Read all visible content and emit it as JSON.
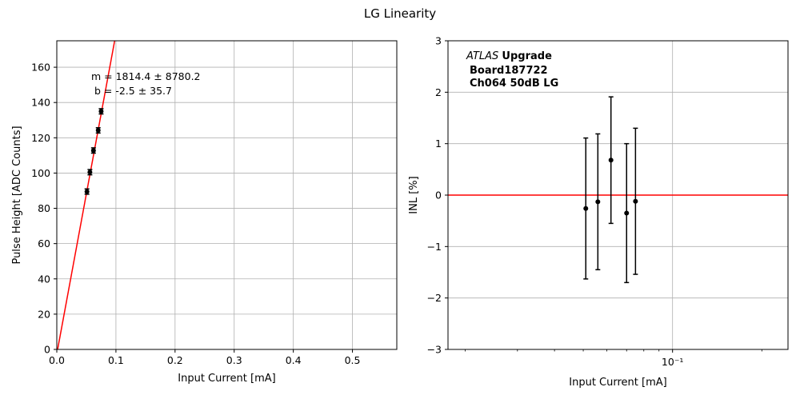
{
  "figure": {
    "title": "LG Linearity"
  },
  "chart_data": [
    {
      "type": "scatter",
      "xlabel": "Input Current [mA]",
      "ylabel": "Pulse Height [ADC Counts]",
      "xlim": [
        0,
        0.575
      ],
      "ylim": [
        0,
        175
      ],
      "xticks": [
        "0.0",
        "0.1",
        "0.2",
        "0.3",
        "0.4",
        "0.5"
      ],
      "yticks": [
        "0",
        "20",
        "40",
        "60",
        "80",
        "100",
        "120",
        "140",
        "160"
      ],
      "grid": true,
      "points": [
        {
          "x": 0.051,
          "y": 89.5,
          "yerr": 1.5
        },
        {
          "x": 0.056,
          "y": 100.5,
          "yerr": 1.5
        },
        {
          "x": 0.062,
          "y": 112.8,
          "yerr": 1.5
        },
        {
          "x": 0.07,
          "y": 124.2,
          "yerr": 1.5
        },
        {
          "x": 0.075,
          "y": 135.0,
          "yerr": 1.5
        }
      ],
      "fit": {
        "m": 1814.4,
        "b": -2.5,
        "color": "#ff0000"
      },
      "annotation": [
        "m = 1814.4 ± 8780.2",
        " b = -2.5 ± 35.7"
      ]
    },
    {
      "type": "scatter",
      "xscale": "log",
      "xlabel": "Input Current [mA]",
      "ylabel": "INL [%]",
      "xlim": [
        0.0175,
        0.245
      ],
      "ylim": [
        -3,
        3
      ],
      "xticks": [
        "10⁻¹"
      ],
      "yticks": [
        "−3",
        "−2",
        "−1",
        "0",
        "1",
        "2",
        "3"
      ],
      "grid": true,
      "points": [
        {
          "x": 0.051,
          "y": -0.26,
          "yerr": 1.37
        },
        {
          "x": 0.056,
          "y": -0.13,
          "yerr": 1.32
        },
        {
          "x": 0.062,
          "y": 0.68,
          "yerr": 1.23
        },
        {
          "x": 0.07,
          "y": -0.35,
          "yerr": 1.35
        },
        {
          "x": 0.075,
          "y": -0.12,
          "yerr": 1.42
        }
      ],
      "hline": {
        "y": 0,
        "color": "#ff0000"
      },
      "annotation": {
        "atlas": "ATLAS",
        "upgrade": "Upgrade",
        "board": "Board187722",
        "channel": "Ch064 50dB LG"
      }
    }
  ]
}
